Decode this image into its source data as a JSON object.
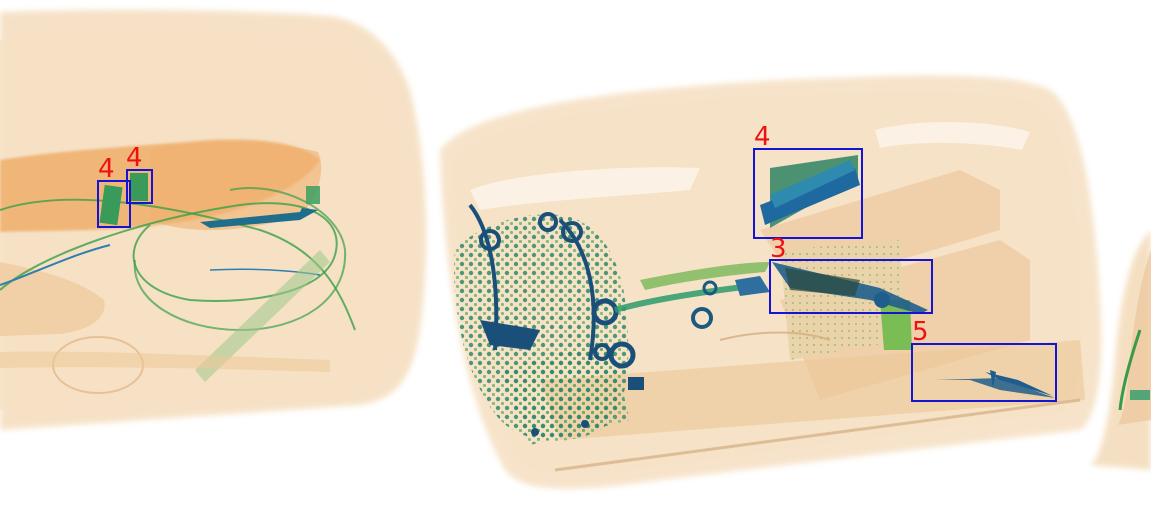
{
  "image": {
    "kind": "x-ray baggage scan",
    "palette": {
      "background": "#ffffff",
      "organic": "#f0c898",
      "organic_dark": "#e8a866",
      "inorganic": "#3aa060",
      "metal": "#1f5e8c",
      "box_stroke": "#1414d2",
      "label_color": "#ee1111"
    }
  },
  "detections": [
    {
      "label": "4",
      "class_id": 4
    },
    {
      "label": "4",
      "class_id": 4
    },
    {
      "label": "4",
      "class_id": 4
    },
    {
      "label": "3",
      "class_id": 3
    },
    {
      "label": "5",
      "class_id": 5
    }
  ]
}
